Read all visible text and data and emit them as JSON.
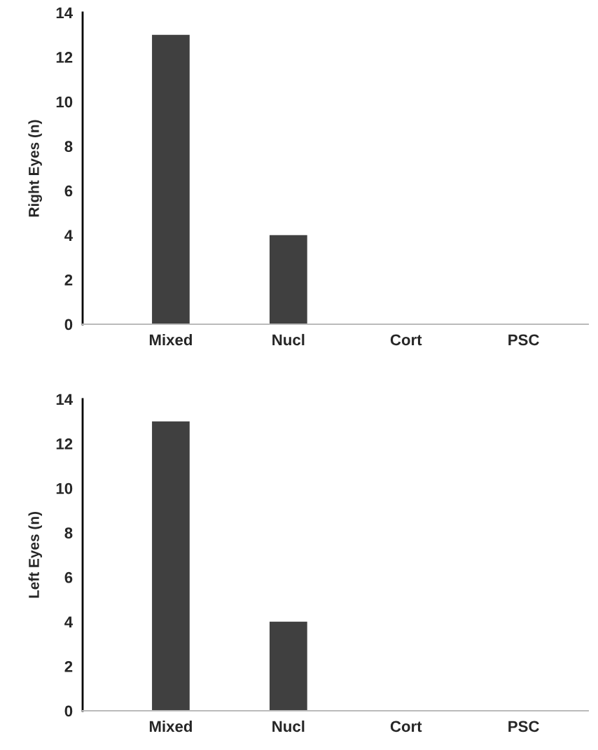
{
  "chart_data": [
    {
      "type": "bar",
      "ylabel": "Right Eyes (n)",
      "categories": [
        "Mixed",
        "Nucl",
        "Cort",
        "PSC"
      ],
      "values": [
        13,
        4,
        0,
        0
      ],
      "color": "#404040",
      "ylim": [
        0,
        14
      ],
      "yticks": [
        0,
        2,
        4,
        6,
        8,
        10,
        12,
        14
      ],
      "grid": false,
      "legend": false
    },
    {
      "type": "bar",
      "ylabel": "Left Eyes (n)",
      "categories": [
        "Mixed",
        "Nucl",
        "Cort",
        "PSC"
      ],
      "values": [
        13,
        4,
        0,
        0
      ],
      "color": "#404040",
      "ylim": [
        0,
        14
      ],
      "yticks": [
        0,
        2,
        4,
        6,
        8,
        10,
        12,
        14
      ],
      "grid": false,
      "legend": false
    }
  ]
}
